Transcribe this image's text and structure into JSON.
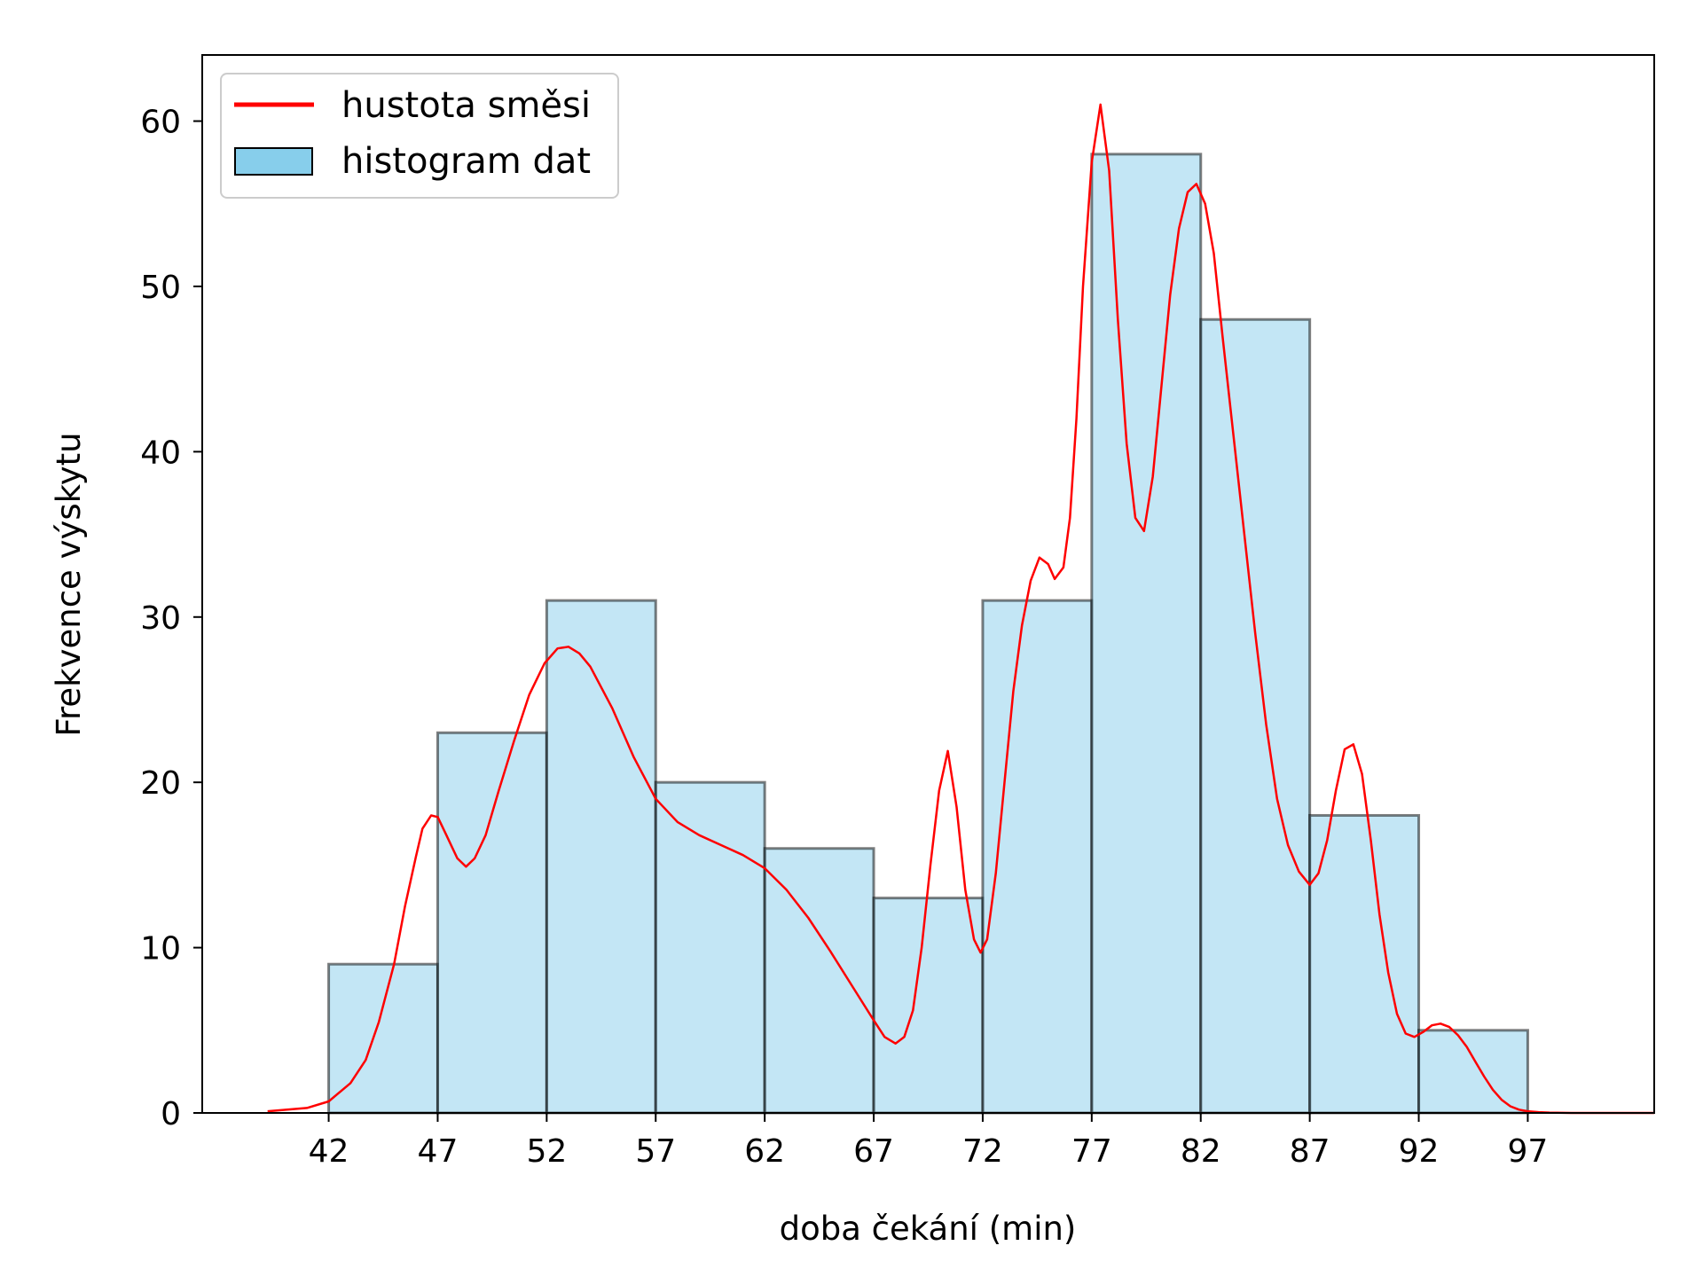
{
  "chart_data": {
    "type": "bar",
    "xlabel": "doba čekání (min)",
    "ylabel": "Frekvence výskytu",
    "xlim": [
      36.2,
      102.8
    ],
    "ylim": [
      0,
      64
    ],
    "x_ticks": [
      42,
      47,
      52,
      57,
      62,
      67,
      72,
      77,
      82,
      87,
      92,
      97
    ],
    "y_ticks": [
      0,
      10,
      20,
      30,
      40,
      50,
      60
    ],
    "grid": false,
    "legend_position": "top-left",
    "legend": [
      "hustota směsi",
      "histogram dat"
    ],
    "series": [
      {
        "name": "histogram dat",
        "kind": "histogram",
        "bin_edges": [
          42,
          47,
          52,
          57,
          62,
          67,
          72,
          77,
          82,
          87,
          92,
          97
        ],
        "values": [
          9,
          23,
          31,
          20,
          16,
          13,
          31,
          58,
          48,
          18,
          5
        ],
        "fill": "#87ceeb",
        "edge": "#000000"
      },
      {
        "name": "hustota směsi",
        "kind": "line",
        "color": "#ff0000",
        "x": [
          39.2,
          41.0,
          42.0,
          43.0,
          43.7,
          44.3,
          45.0,
          45.5,
          46.0,
          46.3,
          46.7,
          47.0,
          47.4,
          47.9,
          48.3,
          48.7,
          49.2,
          49.8,
          50.5,
          51.2,
          51.9,
          52.5,
          53.0,
          53.5,
          54.0,
          55.0,
          56.0,
          57.0,
          58.0,
          59.0,
          60.0,
          61.0,
          62.0,
          63.0,
          64.0,
          65.0,
          66.0,
          67.0,
          67.5,
          68.0,
          68.4,
          68.8,
          69.2,
          69.6,
          70.0,
          70.4,
          70.8,
          71.2,
          71.6,
          71.9,
          72.2,
          72.6,
          73.0,
          73.4,
          73.8,
          74.2,
          74.6,
          75.0,
          75.3,
          75.7,
          76.0,
          76.3,
          76.6,
          77.0,
          77.4,
          77.8,
          78.2,
          78.6,
          79.0,
          79.4,
          79.8,
          80.2,
          80.6,
          81.0,
          81.4,
          81.8,
          82.2,
          82.6,
          83.0,
          83.5,
          84.0,
          84.5,
          85.0,
          85.5,
          86.0,
          86.5,
          87.0,
          87.4,
          87.8,
          88.2,
          88.6,
          89.0,
          89.4,
          89.8,
          90.2,
          90.6,
          91.0,
          91.4,
          91.8,
          92.2,
          92.6,
          93.0,
          93.4,
          93.8,
          94.2,
          94.6,
          95.0,
          95.4,
          95.8,
          96.2,
          96.6,
          97.0,
          97.5,
          98.0,
          99.0,
          100.0,
          102.8
        ],
        "y": [
          0.1,
          0.3,
          0.7,
          1.8,
          3.2,
          5.5,
          9.0,
          12.5,
          15.5,
          17.2,
          18.0,
          17.9,
          16.8,
          15.4,
          14.9,
          15.4,
          16.8,
          19.5,
          22.5,
          25.3,
          27.2,
          28.1,
          28.2,
          27.8,
          27.0,
          24.5,
          21.5,
          19.0,
          17.6,
          16.8,
          16.2,
          15.6,
          14.8,
          13.5,
          11.8,
          9.8,
          7.7,
          5.6,
          4.6,
          4.2,
          4.6,
          6.2,
          10.0,
          15.0,
          19.5,
          21.9,
          18.5,
          13.5,
          10.5,
          9.7,
          10.5,
          14.5,
          20.0,
          25.5,
          29.5,
          32.2,
          33.6,
          33.2,
          32.3,
          33.0,
          36.0,
          42.0,
          50.0,
          57.5,
          61.0,
          57.0,
          48.0,
          40.5,
          36.0,
          35.2,
          38.5,
          44.0,
          49.5,
          53.5,
          55.7,
          56.2,
          55.0,
          52.0,
          47.0,
          41.0,
          35.0,
          29.0,
          23.5,
          19.0,
          16.2,
          14.6,
          13.8,
          14.5,
          16.5,
          19.5,
          22.0,
          22.3,
          20.5,
          16.5,
          12.0,
          8.5,
          6.0,
          4.8,
          4.6,
          4.9,
          5.3,
          5.4,
          5.2,
          4.7,
          4.0,
          3.1,
          2.2,
          1.4,
          0.8,
          0.4,
          0.2,
          0.1,
          0.05,
          0.02,
          0.0,
          0.0,
          0.0
        ]
      }
    ]
  }
}
